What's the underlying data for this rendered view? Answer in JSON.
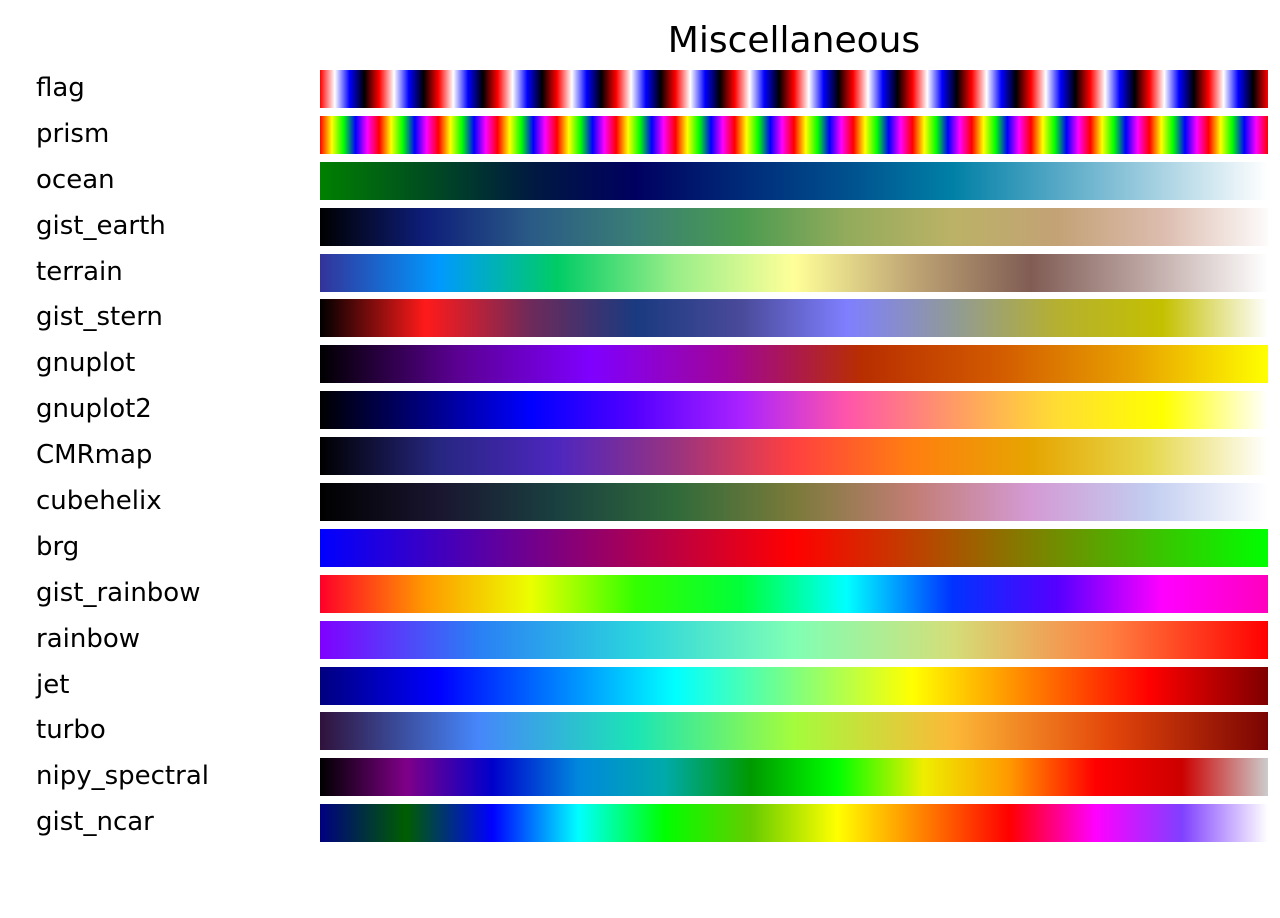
{
  "chart_data": {
    "type": "heatmap",
    "title": "Miscellaneous",
    "grid": false,
    "legend": "none",
    "colormaps": [
      {
        "label": "flag",
        "repeat": 16,
        "colors": [
          "#ff0000",
          "#ffffff",
          "#0000ff",
          "#000000"
        ]
      },
      {
        "label": "prism",
        "repeat": 16,
        "colors": [
          "#ff0000",
          "#ffff00",
          "#00ff00",
          "#0000ff",
          "#ff00ff"
        ]
      },
      {
        "label": "ocean",
        "colors": [
          "#008000",
          "#004d20",
          "#001a40",
          "#000060",
          "#002a78",
          "#00508e",
          "#0080a6",
          "#55a8c6",
          "#aad3e3",
          "#ffffff"
        ]
      },
      {
        "label": "gist_earth",
        "colors": [
          "#000000",
          "#0e1e7a",
          "#2a5a86",
          "#3a7e76",
          "#4a9b50",
          "#93ab5c",
          "#bbb266",
          "#c3a276",
          "#dcbcae",
          "#fdfbfb"
        ]
      },
      {
        "label": "terrain",
        "colors": [
          "#333399",
          "#0099ff",
          "#00cc66",
          "#99ee88",
          "#ffff99",
          "#bfa574",
          "#805c54",
          "#bfa9a6",
          "#ffffff"
        ]
      },
      {
        "label": "gist_stern",
        "colors": [
          "#000000",
          "#ff1a1a",
          "#6e2a5a",
          "#1a3a80",
          "#4a4a9a",
          "#7f7fff",
          "#909a98",
          "#b5b030",
          "#c4c000",
          "#ffffff"
        ]
      },
      {
        "label": "gnuplot",
        "colors": [
          "#000000",
          "#5a0090",
          "#7f00ff",
          "#a0059a",
          "#b82e00",
          "#d25a00",
          "#e8a000",
          "#ffff00"
        ]
      },
      {
        "label": "gnuplot2",
        "colors": [
          "#000000",
          "#000080",
          "#0000ff",
          "#5500ff",
          "#aa22ff",
          "#ff55aa",
          "#ff9966",
          "#ffdd33",
          "#ffff00",
          "#ffffff"
        ]
      },
      {
        "label": "CMRmap",
        "colors": [
          "#000000",
          "#262680",
          "#4d26bf",
          "#993380",
          "#ff4040",
          "#ff7f10",
          "#e6a500",
          "#e6d84d",
          "#ffffff"
        ]
      },
      {
        "label": "cubehelix",
        "colors": [
          "#000000",
          "#1a1530",
          "#1a4040",
          "#306a3a",
          "#7a7a3a",
          "#c27d74",
          "#d49ad4",
          "#c2cdf0",
          "#ffffff"
        ]
      },
      {
        "label": "brg",
        "colors": [
          "#0000ff",
          "#7f007f",
          "#ff0000",
          "#7f7f00",
          "#00ff00"
        ]
      },
      {
        "label": "gist_rainbow",
        "colors": [
          "#ff0029",
          "#ff9900",
          "#ebff00",
          "#33ff00",
          "#00ff3a",
          "#00ffff",
          "#0033ff",
          "#5500ff",
          "#ff00ff",
          "#ff00bf"
        ]
      },
      {
        "label": "rainbow",
        "colors": [
          "#8000ff",
          "#2a7ff5",
          "#2ad4de",
          "#80ffb4",
          "#d4de79",
          "#ff7f40",
          "#ff0000"
        ]
      },
      {
        "label": "jet",
        "colors": [
          "#00007f",
          "#0000ff",
          "#007fff",
          "#00ffff",
          "#7fff7f",
          "#ffff00",
          "#ff7f00",
          "#ff0000",
          "#7f0000"
        ]
      },
      {
        "label": "turbo",
        "colors": [
          "#30123b",
          "#4686fb",
          "#1be5b5",
          "#a4fc3c",
          "#fbb938",
          "#e4460a",
          "#7a0403"
        ]
      },
      {
        "label": "nipy_spectral",
        "colors": [
          "#000000",
          "#7f0088",
          "#0000cc",
          "#0088dd",
          "#00aaaa",
          "#009900",
          "#00ff00",
          "#eeee00",
          "#ff9900",
          "#ff0000",
          "#cc0000",
          "#cccccc"
        ]
      },
      {
        "label": "gist_ncar",
        "colors": [
          "#000080",
          "#005e00",
          "#0000ff",
          "#00ffff",
          "#00ff00",
          "#66cc00",
          "#ffff00",
          "#ff8000",
          "#ff0000",
          "#ff00ff",
          "#8040ff",
          "#ffffff"
        ]
      }
    ]
  }
}
